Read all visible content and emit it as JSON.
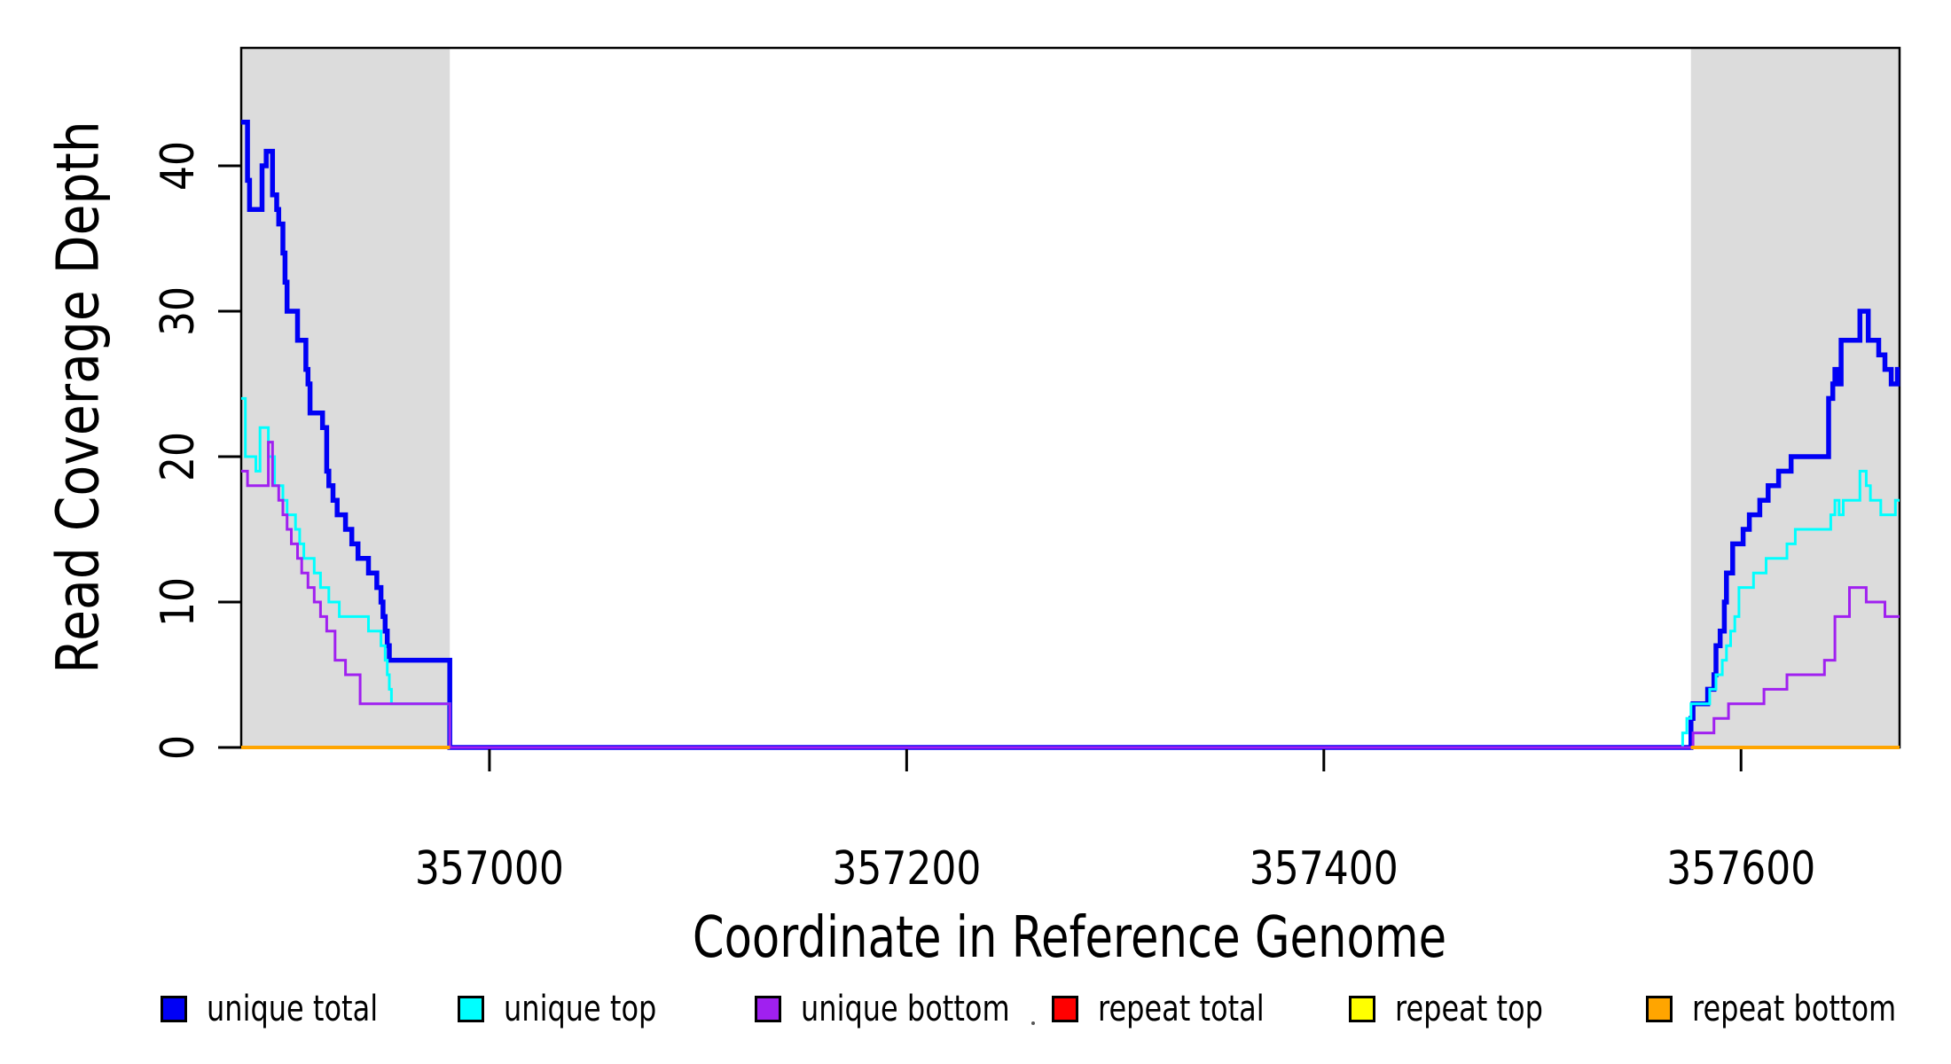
{
  "chart_data": {
    "type": "line",
    "line_style": "step",
    "title": "",
    "xlabel": "Coordinate in Reference Genome",
    "ylabel": "Read Coverage Depth",
    "xlim": [
      356881,
      357676
    ],
    "ylim": [
      0,
      48
    ],
    "grid": false,
    "x_ticks": [
      357000,
      357200,
      357400,
      357600
    ],
    "x_tick_labels": [
      "357000",
      "357200",
      "357400",
      "357600"
    ],
    "y_ticks": [
      0,
      10,
      20,
      30,
      40
    ],
    "y_tick_labels": [
      "0",
      "10",
      "20",
      "30",
      "40"
    ],
    "shaded_bands": [
      {
        "x0": 356881,
        "x1": 356981,
        "color": "#DCDCDC"
      },
      {
        "x0": 357576,
        "x1": 357676,
        "color": "#DCDCDC"
      }
    ],
    "series": [
      {
        "name": "unique total",
        "color": "#0000F5",
        "line_width": 5.5,
        "segments": [
          {
            "steps": [
              [
                356881,
                43
              ],
              [
                356884,
                39
              ],
              [
                356885,
                37
              ],
              [
                356891,
                40
              ],
              [
                356893,
                41
              ],
              [
                356896,
                38
              ],
              [
                356898,
                37
              ],
              [
                356899,
                36
              ],
              [
                356901,
                34
              ],
              [
                356902,
                32
              ],
              [
                356903,
                30
              ],
              [
                356908,
                28
              ],
              [
                356912,
                26
              ],
              [
                356913,
                25
              ],
              [
                356914,
                23
              ],
              [
                356920,
                22
              ],
              [
                356922,
                19
              ],
              [
                356923,
                18
              ],
              [
                356925,
                17
              ],
              [
                356927,
                16
              ],
              [
                356931,
                15
              ],
              [
                356934,
                14
              ],
              [
                356937,
                13
              ],
              [
                356942,
                12
              ],
              [
                356946,
                11
              ],
              [
                356948,
                10
              ],
              [
                356949,
                9
              ],
              [
                356950,
                8
              ],
              [
                356951,
                7
              ],
              [
                356952,
                6
              ],
              [
                356981,
                0
              ],
              [
                357576,
                2
              ],
              [
                357577,
                3
              ],
              [
                357584,
                4
              ],
              [
                357587,
                5
              ],
              [
                357588,
                7
              ],
              [
                357590,
                8
              ],
              [
                357592,
                10
              ],
              [
                357593,
                12
              ],
              [
                357596,
                14
              ],
              [
                357601,
                15
              ],
              [
                357604,
                16
              ],
              [
                357609,
                17
              ],
              [
                357613,
                18
              ],
              [
                357618,
                19
              ],
              [
                357624,
                20
              ],
              [
                357642,
                24
              ],
              [
                357644,
                25
              ],
              [
                357645,
                26
              ],
              [
                357647,
                25
              ],
              [
                357648,
                28
              ],
              [
                357657,
                30
              ],
              [
                357661,
                28
              ],
              [
                357666,
                27
              ],
              [
                357669,
                26
              ],
              [
                357672,
                25
              ],
              [
                357675,
                26
              ]
            ],
            "end": 357676
          }
        ]
      },
      {
        "name": "unique top",
        "color": "#00FFFF",
        "line_width": 3,
        "segments": [
          {
            "steps": [
              [
                356881,
                24
              ],
              [
                356883,
                20
              ],
              [
                356888,
                19
              ],
              [
                356890,
                22
              ],
              [
                356894,
                20
              ],
              [
                356897,
                18
              ],
              [
                356901,
                17
              ],
              [
                356903,
                16
              ],
              [
                356907,
                15
              ],
              [
                356909,
                14
              ],
              [
                356911,
                13
              ],
              [
                356916,
                12
              ],
              [
                356919,
                11
              ],
              [
                356923,
                10
              ],
              [
                356928,
                9
              ],
              [
                356942,
                8
              ],
              [
                356948,
                7
              ],
              [
                356950,
                6
              ],
              [
                356951,
                5
              ],
              [
                356952,
                4
              ],
              [
                356953,
                3
              ],
              [
                356981,
                0
              ],
              [
                357572,
                1
              ],
              [
                357574,
                2
              ],
              [
                357576,
                3
              ],
              [
                357585,
                4
              ],
              [
                357588,
                5
              ],
              [
                357591,
                6
              ],
              [
                357593,
                7
              ],
              [
                357595,
                8
              ],
              [
                357597,
                9
              ],
              [
                357599,
                11
              ],
              [
                357606,
                12
              ],
              [
                357612,
                13
              ],
              [
                357622,
                14
              ],
              [
                357626,
                15
              ],
              [
                357643,
                16
              ],
              [
                357645,
                17
              ],
              [
                357647,
                16
              ],
              [
                357649,
                17
              ],
              [
                357657,
                19
              ],
              [
                357660,
                18
              ],
              [
                357662,
                17
              ],
              [
                357667,
                16
              ],
              [
                357674,
                17
              ]
            ],
            "end": 357676
          }
        ]
      },
      {
        "name": "unique bottom",
        "color": "#A020F0",
        "line_width": 3,
        "segments": [
          {
            "steps": [
              [
                356881,
                19
              ],
              [
                356884,
                18
              ],
              [
                356894,
                21
              ],
              [
                356896,
                18
              ],
              [
                356899,
                17
              ],
              [
                356901,
                16
              ],
              [
                356903,
                15
              ],
              [
                356905,
                14
              ],
              [
                356908,
                13
              ],
              [
                356910,
                12
              ],
              [
                356913,
                11
              ],
              [
                356916,
                10
              ],
              [
                356919,
                9
              ],
              [
                356922,
                8
              ],
              [
                356926,
                6
              ],
              [
                356931,
                5
              ],
              [
                356938,
                3
              ],
              [
                356981,
                0
              ],
              [
                357577,
                1
              ],
              [
                357587,
                2
              ],
              [
                357594,
                3
              ],
              [
                357611,
                4
              ],
              [
                357622,
                5
              ],
              [
                357640,
                6
              ],
              [
                357645,
                9
              ],
              [
                357652,
                11
              ],
              [
                357660,
                10
              ],
              [
                357669,
                9
              ]
            ],
            "end": 357676
          }
        ]
      },
      {
        "name": "repeat total",
        "color": "#FF0000",
        "line_width": 3,
        "segments": [
          {
            "steps": [
              [
                356881,
                0
              ]
            ],
            "end": 356981
          },
          {
            "steps": [
              [
                357576,
                0
              ]
            ],
            "end": 357676
          }
        ]
      },
      {
        "name": "repeat top",
        "color": "#FFFF00",
        "line_width": 3,
        "segments": [
          {
            "steps": [
              [
                356881,
                0
              ]
            ],
            "end": 356981
          },
          {
            "steps": [
              [
                357576,
                0
              ]
            ],
            "end": 357676
          }
        ]
      },
      {
        "name": "repeat bottom",
        "color": "#FFA500",
        "line_width": 4,
        "segments": [
          {
            "steps": [
              [
                356881,
                0
              ]
            ],
            "end": 356981
          },
          {
            "steps": [
              [
                357576,
                0
              ]
            ],
            "end": 357676
          }
        ]
      }
    ],
    "legend": {
      "position": "bottom",
      "entries": [
        {
          "label": "unique total",
          "color": "#0000F5"
        },
        {
          "label": "unique top",
          "color": "#00FFFF"
        },
        {
          "label": "unique bottom",
          "color": "#A020F0"
        },
        {
          "label": "repeat total",
          "color": "#FF0000"
        },
        {
          "label": "repeat top",
          "color": "#FFFF00"
        },
        {
          "label": "repeat bottom",
          "color": "#FFA500"
        }
      ]
    }
  }
}
